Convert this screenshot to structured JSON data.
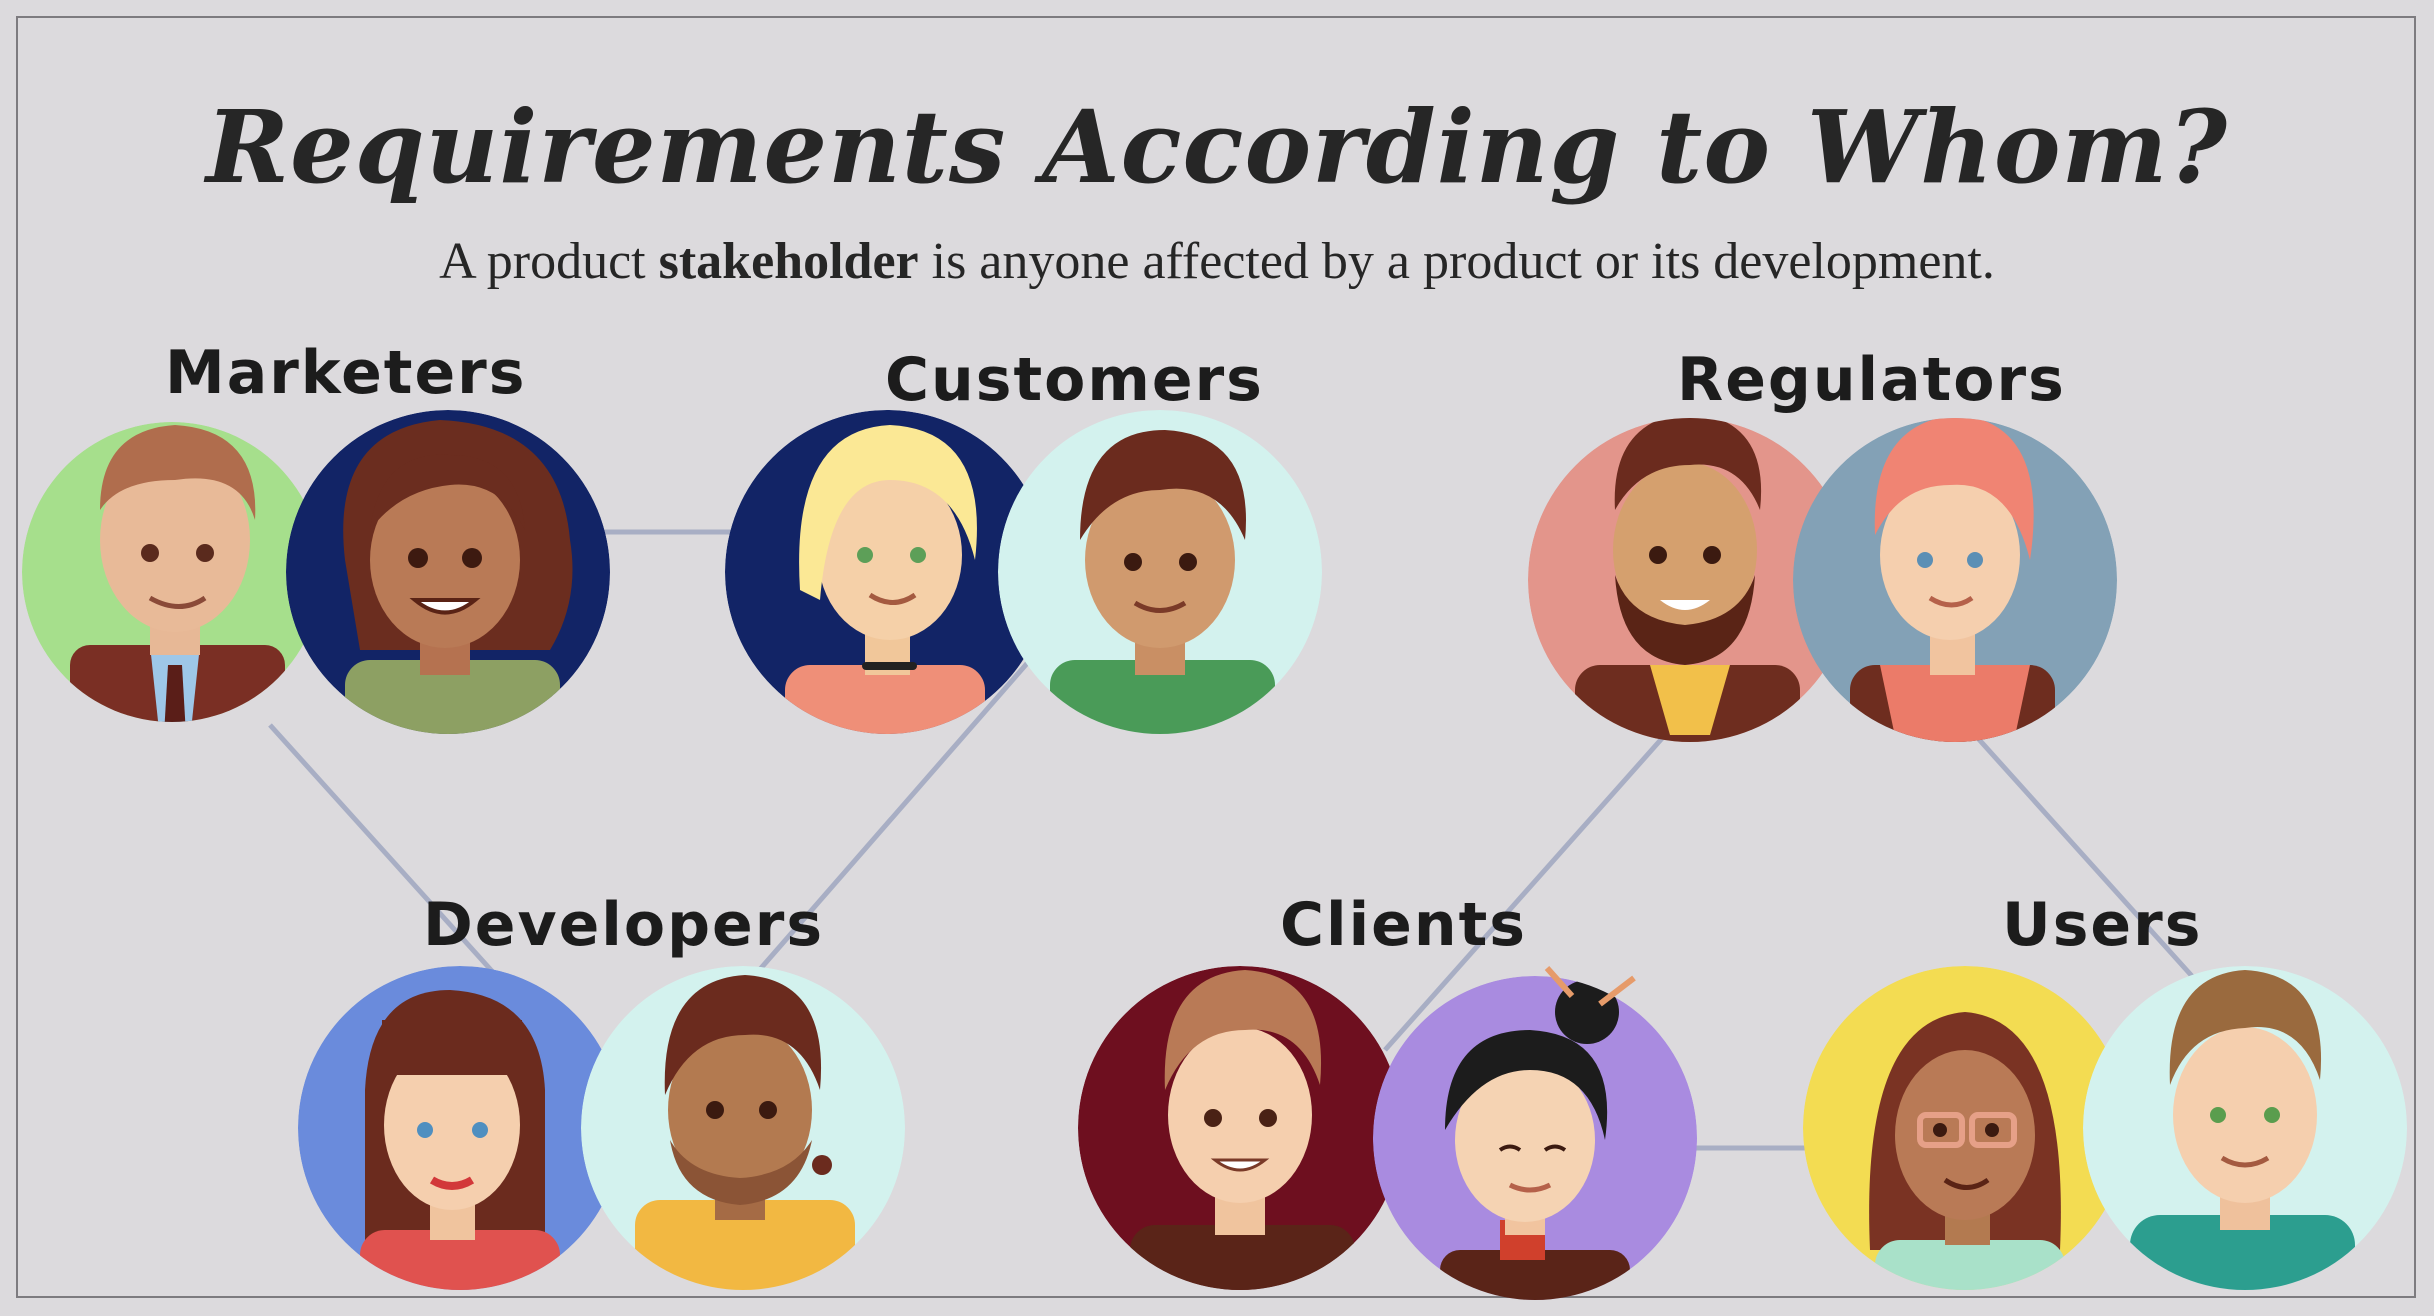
{
  "title": "Requirements According to Whom?",
  "subtitle": {
    "prefix": "A product ",
    "bold": "stakeholder",
    "suffix": " is anyone affected by a product or its development."
  },
  "groups": {
    "marketers": "Marketers",
    "customers": "Customers",
    "regulators": "Regulators",
    "developers": "Developers",
    "clients": "Clients",
    "users": "Users"
  },
  "colors": {
    "background": "#dcdadd",
    "connector": "#a8aec4",
    "text": "#262626"
  }
}
